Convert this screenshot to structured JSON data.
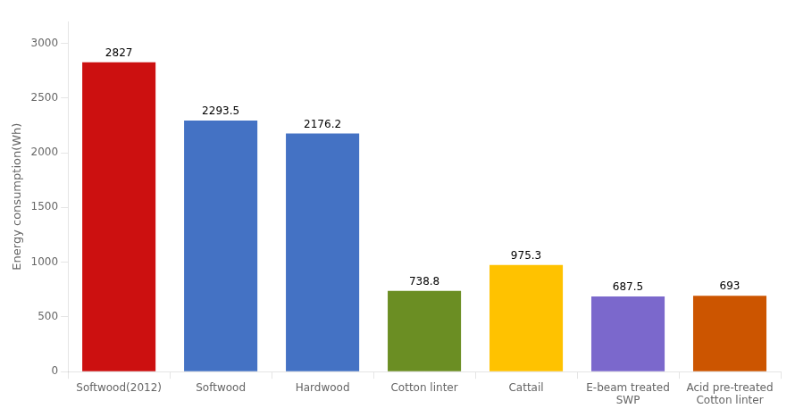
{
  "chart_data": {
    "type": "bar",
    "categories": [
      "Softwood(2012)",
      "Softwood",
      "Hardwood",
      "Cotton linter",
      "Cattail",
      "E-beam treated\nSWP",
      "Acid pre-treated\nCotton linter"
    ],
    "values": [
      2827,
      2293.5,
      2176.2,
      738.8,
      975.3,
      687.5,
      693
    ],
    "colors": [
      "#cc1010",
      "#4472c4",
      "#4472c4",
      "#6b8e23",
      "#ffc200",
      "#7b68cc",
      "#cc5500"
    ],
    "ylabel": "Energy consumption(Wh)",
    "ylim": [
      0,
      3200
    ],
    "yticks": [
      0,
      500,
      1000,
      1500,
      2000,
      2500,
      3000
    ],
    "grid": false,
    "data_labels": true
  }
}
